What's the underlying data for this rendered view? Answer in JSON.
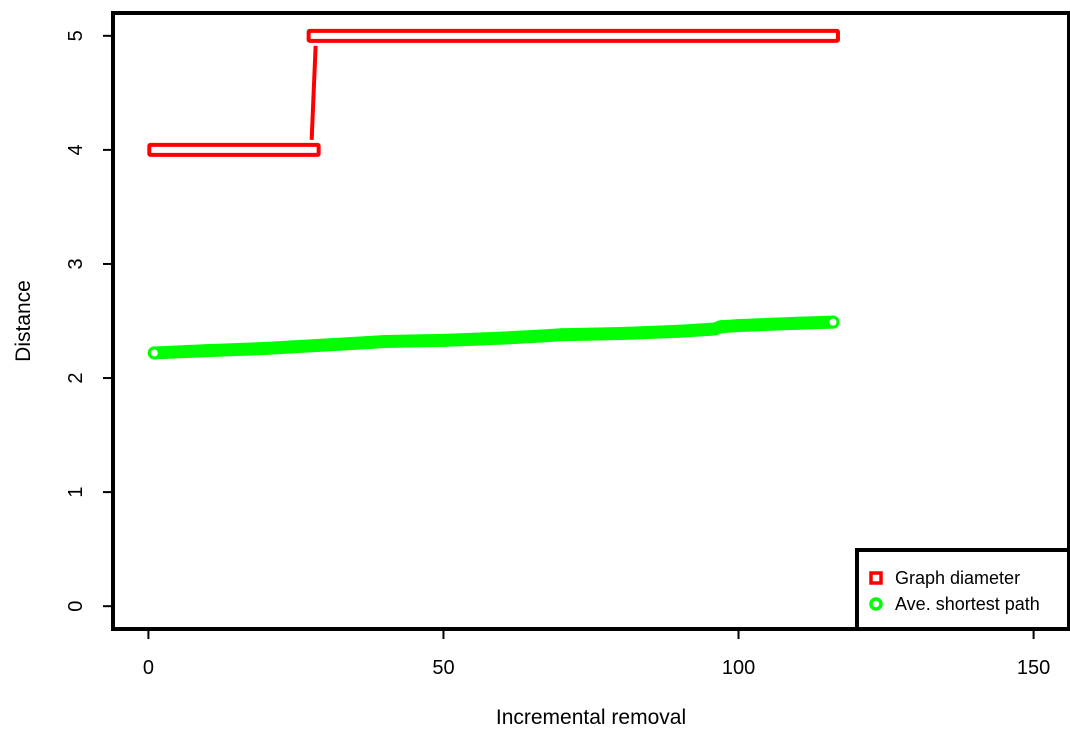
{
  "chart_data": {
    "type": "scatter",
    "title": "",
    "xlabel": "Incremental removal",
    "ylabel": "Distance",
    "xlim": [
      -6,
      156
    ],
    "ylim": [
      -0.2,
      5.2
    ],
    "xticks": [
      0,
      50,
      100,
      150
    ],
    "yticks": [
      0,
      1,
      2,
      3,
      4,
      5
    ],
    "grid": false,
    "legend": {
      "position": "bottom-right"
    },
    "series": [
      {
        "name": "Graph diameter",
        "color": "#ff0000",
        "marker": "square",
        "segments": [
          {
            "x": [
              1,
              28
            ],
            "y": [
              4,
              4
            ]
          },
          {
            "x": [
              28,
              116
            ],
            "y": [
              5,
              5
            ]
          }
        ]
      },
      {
        "name": "Ave. shortest path",
        "color": "#00ff00",
        "marker": "circle",
        "x": [
          1,
          10,
          20,
          30,
          37,
          40,
          50,
          60,
          67,
          70,
          80,
          90,
          96,
          97,
          100,
          110,
          116
        ],
        "y": [
          2.22,
          2.24,
          2.26,
          2.29,
          2.31,
          2.32,
          2.33,
          2.35,
          2.37,
          2.38,
          2.39,
          2.41,
          2.43,
          2.45,
          2.46,
          2.48,
          2.49
        ]
      }
    ]
  }
}
